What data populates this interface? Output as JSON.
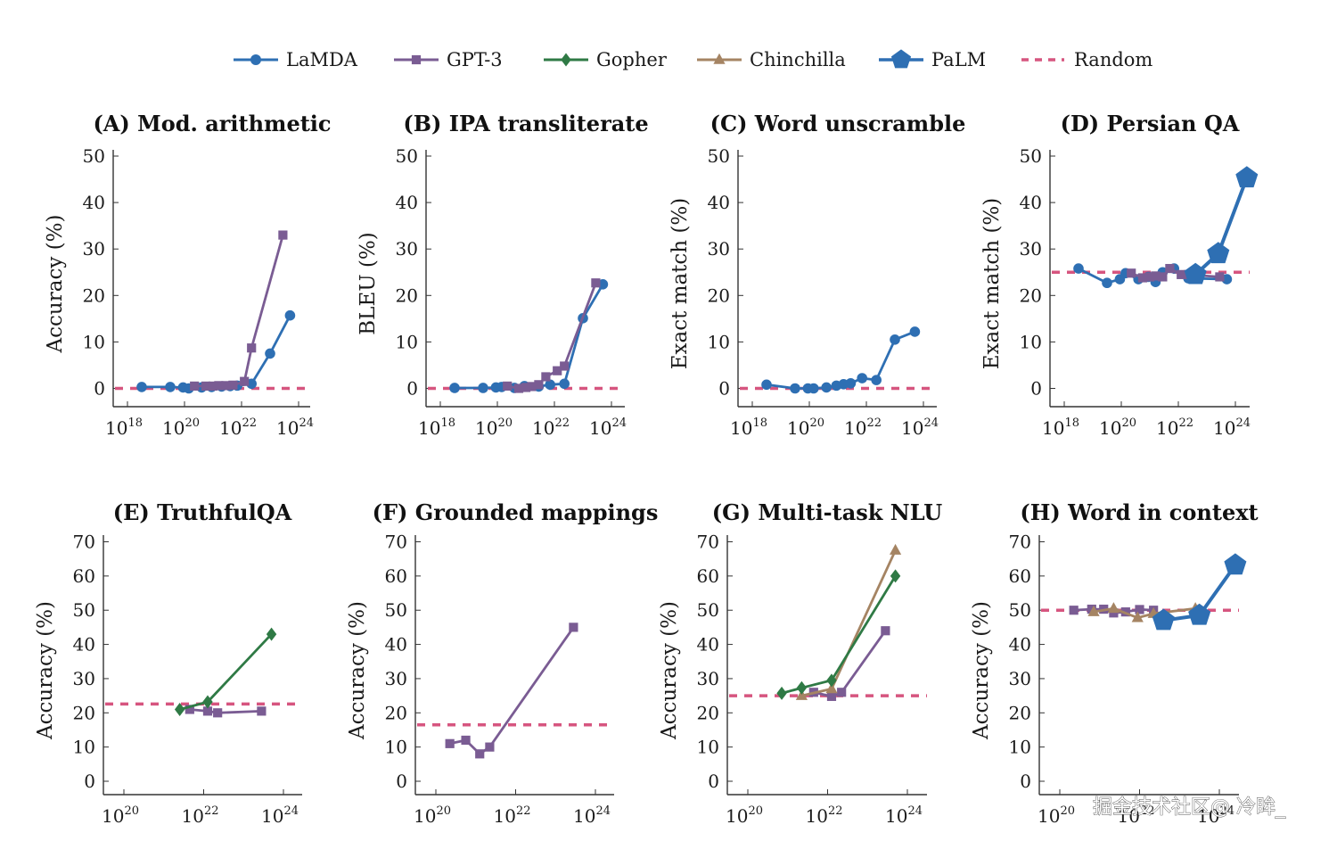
{
  "legend": [
    {
      "name": "LaMDA",
      "color": "#2e6fb3",
      "marker": "circle",
      "line": "solid"
    },
    {
      "name": "GPT-3",
      "color": "#7a5c93",
      "marker": "square",
      "line": "solid"
    },
    {
      "name": "Gopher",
      "color": "#2f7a45",
      "marker": "diamond",
      "line": "solid"
    },
    {
      "name": "Chinchilla",
      "color": "#a58463",
      "marker": "triangle",
      "line": "solid"
    },
    {
      "name": "PaLM",
      "color": "#2e6fb3",
      "marker": "pentagon",
      "line": "solid"
    },
    {
      "name": "Random",
      "color": "#d6557f",
      "marker": "none",
      "line": "dashed"
    }
  ],
  "watermark": "掘金技术社区@ 冷眸_",
  "chart_data": [
    {
      "id": "A",
      "type": "line",
      "title": "(A) Mod. arithmetic",
      "xlabel": "",
      "ylabel": "Accuracy (%)",
      "xscale": "log",
      "xlim_exp": [
        17.5,
        24.4
      ],
      "xticks_exp": [
        18,
        20,
        22,
        24
      ],
      "ylim": [
        -4,
        52
      ],
      "yticks": [
        0,
        10,
        20,
        30,
        40,
        50
      ],
      "random": 0,
      "legend_position": "top-center",
      "series": [
        {
          "name": "LaMDA",
          "x_exp": [
            18.5,
            19.5,
            19.95,
            20.15,
            20.6,
            20.95,
            21.3,
            21.6,
            21.85,
            22.35,
            23.0,
            23.7
          ],
          "y": [
            0.3,
            0.3,
            0.2,
            0.0,
            0.2,
            0.3,
            0.4,
            0.5,
            0.6,
            1.0,
            7.5,
            15.7
          ]
        },
        {
          "name": "GPT-3",
          "x_exp": [
            20.35,
            20.75,
            21.0,
            21.2,
            21.45,
            21.7,
            22.1,
            22.35,
            23.45
          ],
          "y": [
            0.5,
            0.5,
            0.5,
            0.6,
            0.6,
            0.7,
            1.5,
            8.7,
            33.0
          ]
        }
      ]
    },
    {
      "id": "B",
      "type": "line",
      "title": "(B) IPA transliterate",
      "xlabel": "",
      "ylabel": "BLEU (%)",
      "xscale": "log",
      "xlim_exp": [
        17.5,
        24.4
      ],
      "xticks_exp": [
        18,
        20,
        22,
        24
      ],
      "ylim": [
        -4,
        52
      ],
      "yticks": [
        0,
        10,
        20,
        30,
        40,
        50
      ],
      "random": 0,
      "legend_position": "top-center",
      "series": [
        {
          "name": "LaMDA",
          "x_exp": [
            18.5,
            19.5,
            19.95,
            20.15,
            20.6,
            20.95,
            21.45,
            21.85,
            22.35,
            23.0,
            23.7
          ],
          "y": [
            0.1,
            0.1,
            0.2,
            0.3,
            0.1,
            0.5,
            0.4,
            0.8,
            1.0,
            15.1,
            22.4
          ]
        },
        {
          "name": "GPT-3",
          "x_exp": [
            20.35,
            20.75,
            21.0,
            21.2,
            21.45,
            21.7,
            22.1,
            22.35,
            23.45
          ],
          "y": [
            0.5,
            0.0,
            0.2,
            0.4,
            0.8,
            2.5,
            3.8,
            4.8,
            22.7
          ]
        }
      ]
    },
    {
      "id": "C",
      "type": "line",
      "title": "(C) Word unscramble",
      "xlabel": "",
      "ylabel": "Exact match (%)",
      "xscale": "log",
      "xlim_exp": [
        17.5,
        24.4
      ],
      "xticks_exp": [
        18,
        20,
        22,
        24
      ],
      "ylim": [
        -4,
        52
      ],
      "yticks": [
        0,
        10,
        20,
        30,
        40,
        50
      ],
      "random": 0,
      "legend_position": "top-center",
      "series": [
        {
          "name": "LaMDA",
          "x_exp": [
            18.5,
            19.5,
            19.95,
            20.15,
            20.6,
            20.95,
            21.2,
            21.45,
            21.85,
            22.35,
            23.0,
            23.7
          ],
          "y": [
            0.8,
            0.0,
            0.0,
            0.0,
            0.2,
            0.6,
            0.9,
            1.1,
            2.2,
            1.8,
            10.5,
            12.2
          ]
        }
      ]
    },
    {
      "id": "D",
      "type": "line",
      "title": "(D) Persian QA",
      "xlabel": "",
      "ylabel": "Exact match (%)",
      "xscale": "log",
      "xlim_exp": [
        17.5,
        24.4
      ],
      "xticks_exp": [
        18,
        20,
        22,
        24
      ],
      "ylim": [
        -4,
        52
      ],
      "yticks": [
        0,
        10,
        20,
        30,
        40,
        50
      ],
      "random": 25,
      "legend_position": "top-center",
      "series": [
        {
          "name": "LaMDA",
          "x_exp": [
            18.5,
            19.5,
            19.95,
            20.15,
            20.6,
            20.95,
            21.2,
            21.45,
            21.85,
            22.35,
            23.7
          ],
          "y": [
            25.8,
            22.7,
            23.5,
            24.8,
            23.5,
            24.0,
            22.9,
            25.0,
            25.8,
            23.7,
            23.5
          ]
        },
        {
          "name": "GPT-3",
          "x_exp": [
            20.35,
            20.75,
            21.0,
            21.2,
            21.45,
            21.7,
            22.1,
            22.35,
            23.45
          ],
          "y": [
            24.8,
            23.8,
            24.0,
            24.2,
            24.0,
            25.8,
            24.5,
            24.5,
            24.0
          ]
        },
        {
          "name": "PaLM",
          "x_exp": [
            22.6,
            23.4,
            24.4
          ],
          "y": [
            24.5,
            29.0,
            45.3
          ]
        }
      ]
    },
    {
      "id": "E",
      "type": "line",
      "title": "(E) TruthfulQA",
      "xlabel": "",
      "ylabel": "Accuracy (%)",
      "xscale": "log",
      "xlim_exp": [
        19.5,
        24.5
      ],
      "xticks_exp": [
        20,
        22,
        24
      ],
      "ylim": [
        -4,
        72
      ],
      "yticks": [
        0,
        10,
        20,
        30,
        40,
        50,
        60,
        70
      ],
      "random": 22.6,
      "legend_position": "top-center",
      "series": [
        {
          "name": "GPT-3",
          "x_exp": [
            21.65,
            22.1,
            22.35,
            23.45
          ],
          "y": [
            21.0,
            20.5,
            20.0,
            20.5
          ]
        },
        {
          "name": "Gopher",
          "x_exp": [
            21.4,
            22.1,
            23.7
          ],
          "y": [
            21.0,
            23.2,
            43.0
          ]
        }
      ]
    },
    {
      "id": "F",
      "type": "line",
      "title": "(F) Grounded mappings",
      "xlabel": "",
      "ylabel": "Accuracy (%)",
      "xscale": "log",
      "xlim_exp": [
        19.5,
        24.5
      ],
      "xticks_exp": [
        20,
        22,
        24
      ],
      "ylim": [
        -4,
        72
      ],
      "yticks": [
        0,
        10,
        20,
        30,
        40,
        50,
        60,
        70
      ],
      "random": 16.5,
      "legend_position": "top-center",
      "series": [
        {
          "name": "GPT-3",
          "x_exp": [
            20.35,
            20.75,
            21.1,
            21.35,
            23.45
          ],
          "y": [
            11.0,
            12.0,
            8.0,
            10.0,
            45.0
          ]
        }
      ]
    },
    {
      "id": "G",
      "type": "line",
      "title": "(G) Multi-task NLU",
      "xlabel": "",
      "ylabel": "Accuracy (%)",
      "xscale": "log",
      "xlim_exp": [
        19.5,
        24.5
      ],
      "xticks_exp": [
        20,
        22,
        24
      ],
      "ylim": [
        -4,
        72
      ],
      "yticks": [
        0,
        10,
        20,
        30,
        40,
        50,
        60,
        70
      ],
      "random": 25,
      "legend_position": "top-center",
      "series": [
        {
          "name": "GPT-3",
          "x_exp": [
            21.65,
            22.1,
            22.35,
            23.45
          ],
          "y": [
            26.0,
            24.8,
            26.0,
            44.0
          ]
        },
        {
          "name": "Chinchilla",
          "x_exp": [
            21.35,
            22.1,
            23.7
          ],
          "y": [
            25.0,
            27.0,
            67.5
          ]
        },
        {
          "name": "Gopher",
          "x_exp": [
            20.85,
            21.35,
            22.1,
            23.7
          ],
          "y": [
            25.7,
            27.3,
            29.5,
            60.0
          ]
        }
      ]
    },
    {
      "id": "H",
      "type": "line",
      "title": "(H) Word in context",
      "xlabel": "",
      "ylabel": "Accuracy (%)",
      "xscale": "log",
      "xlim_exp": [
        19.5,
        24.5
      ],
      "xticks_exp": [
        20,
        22,
        24
      ],
      "ylim": [
        -4,
        72
      ],
      "yticks": [
        0,
        10,
        20,
        30,
        40,
        50,
        60,
        70
      ],
      "random": 50,
      "legend_position": "top-center",
      "series": [
        {
          "name": "GPT-3",
          "x_exp": [
            20.35,
            20.8,
            21.1,
            21.35,
            21.65,
            22.0,
            22.35
          ],
          "y": [
            50.0,
            50.3,
            50.3,
            49.2,
            49.5,
            50.2,
            50.0
          ]
        },
        {
          "name": "Chinchilla",
          "x_exp": [
            20.85,
            21.35,
            21.95,
            22.35,
            23.4
          ],
          "y": [
            49.5,
            50.5,
            47.8,
            49.0,
            50.5
          ]
        },
        {
          "name": "PaLM",
          "x_exp": [
            22.6,
            23.5,
            24.4
          ],
          "y": [
            47.0,
            48.5,
            63.2
          ]
        }
      ]
    }
  ]
}
